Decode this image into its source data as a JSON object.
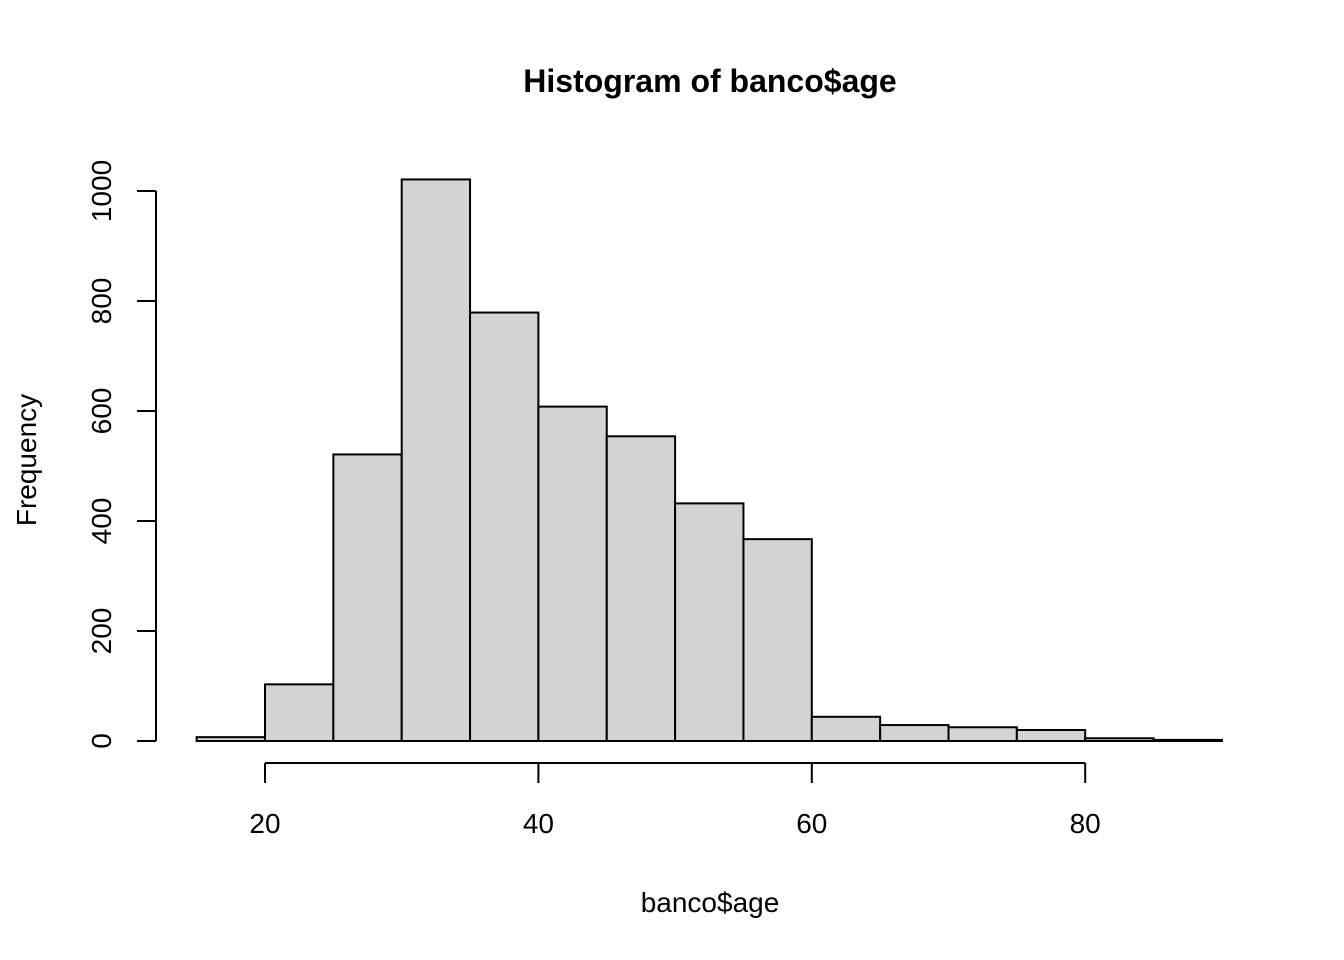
{
  "chart_data": {
    "type": "bar",
    "title": "Histogram of banco$age",
    "xlabel": "banco$age",
    "ylabel": "Frequency",
    "bins": [
      {
        "from": 15,
        "to": 20,
        "count": 7
      },
      {
        "from": 20,
        "to": 25,
        "count": 103
      },
      {
        "from": 25,
        "to": 30,
        "count": 521
      },
      {
        "from": 30,
        "to": 35,
        "count": 1021
      },
      {
        "from": 35,
        "to": 40,
        "count": 779
      },
      {
        "from": 40,
        "to": 45,
        "count": 608
      },
      {
        "from": 45,
        "to": 50,
        "count": 554
      },
      {
        "from": 50,
        "to": 55,
        "count": 432
      },
      {
        "from": 55,
        "to": 60,
        "count": 367
      },
      {
        "from": 60,
        "to": 65,
        "count": 44
      },
      {
        "from": 65,
        "to": 70,
        "count": 29
      },
      {
        "from": 70,
        "to": 75,
        "count": 25
      },
      {
        "from": 75,
        "to": 80,
        "count": 20
      },
      {
        "from": 80,
        "to": 85,
        "count": 5
      },
      {
        "from": 85,
        "to": 90,
        "count": 2
      }
    ],
    "x_ticks": [
      "20",
      "40",
      "60",
      "80"
    ],
    "y_ticks": [
      "0",
      "200",
      "400",
      "600",
      "800",
      "1000"
    ],
    "xlim": [
      15,
      90
    ],
    "ylim": [
      0,
      1021
    ],
    "grid": false,
    "bar_color": "#d3d3d3",
    "edge_color": "#000000"
  }
}
